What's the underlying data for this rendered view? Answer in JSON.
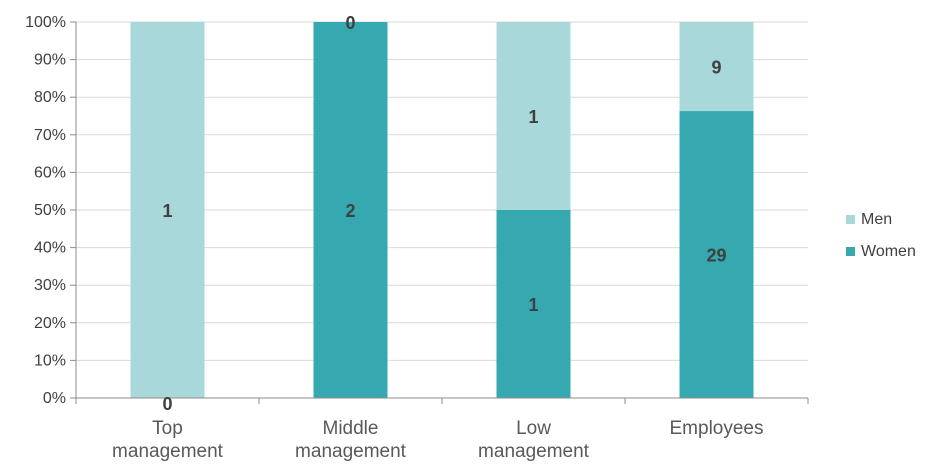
{
  "chart_data": {
    "type": "bar",
    "stacked": "percent",
    "categories": [
      [
        "Top",
        "management"
      ],
      [
        "Middle",
        "management"
      ],
      [
        "Low",
        "management"
      ],
      [
        "Employees"
      ]
    ],
    "series": [
      {
        "name": "Women",
        "values": [
          0,
          2,
          1,
          29
        ],
        "color": "#35a8b0"
      },
      {
        "name": "Men",
        "values": [
          1,
          0,
          1,
          9
        ],
        "color": "#a8d8da"
      }
    ],
    "y_ticks": [
      "0%",
      "10%",
      "20%",
      "30%",
      "40%",
      "50%",
      "60%",
      "70%",
      "80%",
      "90%",
      "100%"
    ],
    "ylim": [
      0,
      100
    ],
    "grid": true,
    "legend_position": "right",
    "legend_order": [
      "Men",
      "Women"
    ]
  }
}
